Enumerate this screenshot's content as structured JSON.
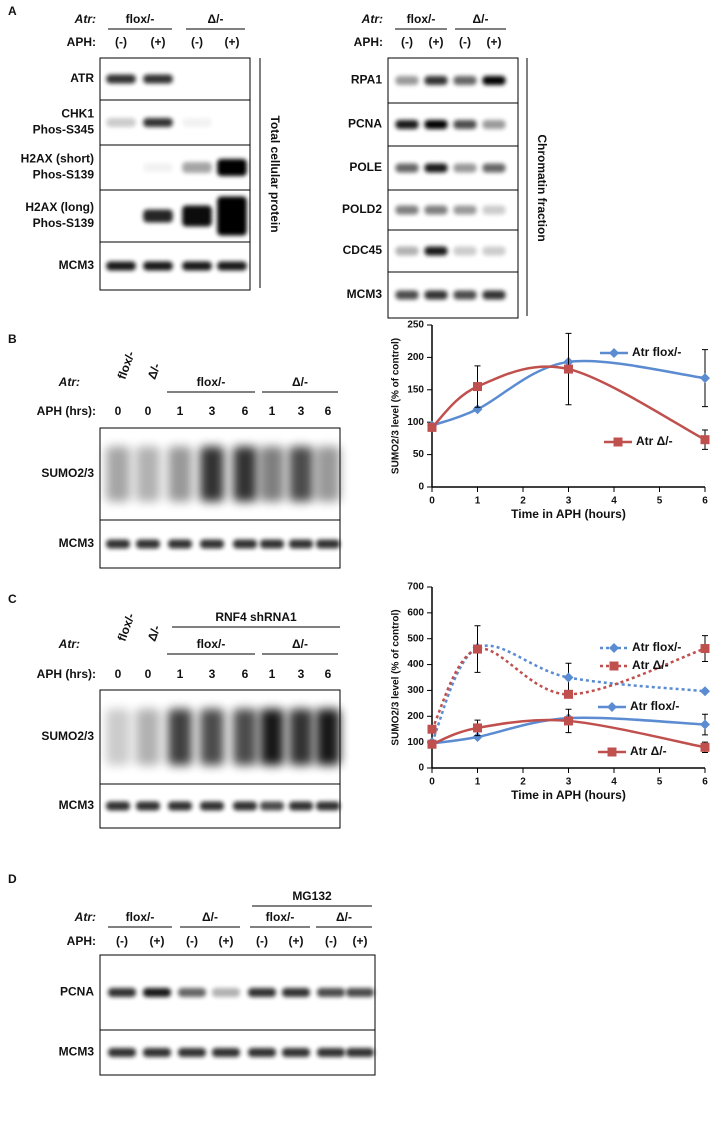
{
  "panel_A": {
    "label": "A",
    "left": {
      "gene_label": "Atr:",
      "groups": [
        "flox/-",
        "Δ/-"
      ],
      "treatment_label": "APH:",
      "lanes": [
        "(-)",
        "(+)",
        "(-)",
        "(+)"
      ],
      "rows": [
        [
          "ATR"
        ],
        [
          "CHK1",
          "Phos-S345"
        ],
        [
          "H2AX (short)",
          "Phos-S139"
        ],
        [
          "H2AX (long)",
          "Phos-S139"
        ],
        [
          "MCM3"
        ]
      ],
      "side_label": "Total cellular protein"
    },
    "right": {
      "gene_label": "Atr:",
      "groups": [
        "flox/-",
        "Δ/-"
      ],
      "treatment_label": "APH:",
      "lanes": [
        "(-)",
        "(+)",
        "(-)",
        "(+)"
      ],
      "rows": [
        [
          "RPA1"
        ],
        [
          "PCNA"
        ],
        [
          "POLE"
        ],
        [
          "POLD2"
        ],
        [
          "CDC45"
        ],
        [
          "MCM3"
        ]
      ],
      "side_label": "Chromatin fraction"
    }
  },
  "panel_B": {
    "label": "B",
    "single_lanes": [
      "flox/-",
      "Δ/-"
    ],
    "gene_label": "Atr:",
    "groups": [
      "flox/-",
      "Δ/-"
    ],
    "treatment_label": "APH (hrs):",
    "lanes": [
      "0",
      "0",
      "1",
      "3",
      "6",
      "1",
      "3",
      "6"
    ],
    "rows": [
      "SUMO2/3",
      "MCM3"
    ]
  },
  "panel_C": {
    "label": "C",
    "header": "RNF4 shRNA1",
    "single_lanes": [
      "flox/-",
      "Δ/-"
    ],
    "gene_label": "Atr:",
    "groups": [
      "flox/-",
      "Δ/-"
    ],
    "treatment_label": "APH (hrs):",
    "lanes": [
      "0",
      "0",
      "1",
      "3",
      "6",
      "1",
      "3",
      "6"
    ],
    "rows": [
      "SUMO2/3",
      "MCM3"
    ]
  },
  "panel_D": {
    "label": "D",
    "header": "MG132",
    "gene_label": "Atr:",
    "groups": [
      "flox/-",
      "Δ/-",
      "flox/-",
      "Δ/-"
    ],
    "treatment_label": "APH:",
    "lanes": [
      "(-)",
      "(+)",
      "(-)",
      "(+)",
      "(-)",
      "(+)",
      "(-)",
      "(+)"
    ],
    "rows": [
      "PCNA",
      "MCM3"
    ]
  },
  "chart_data": [
    {
      "type": "line",
      "y_label": "SUMO2/3 level (% of control)",
      "x_label": "Time in APH (hours)",
      "x": [
        0,
        1,
        3,
        6
      ],
      "xlim": [
        0,
        6
      ],
      "xticks": [
        0,
        1,
        2,
        3,
        4,
        5,
        6
      ],
      "ylim": [
        0,
        250
      ],
      "yticks": [
        0,
        50,
        100,
        150,
        200,
        250
      ],
      "series": [
        {
          "name": "Atr flox/-",
          "color": "#5b8bd0",
          "marker": "diamond",
          "dashed": false,
          "values": [
            95,
            120,
            193,
            168
          ],
          "errors": [
            null,
            null,
            null,
            44
          ]
        },
        {
          "name": "Atr Δ/-",
          "color": "#c0504d",
          "marker": "square",
          "dashed": false,
          "values": [
            92,
            155,
            182,
            73
          ],
          "errors": [
            null,
            32,
            55,
            15
          ]
        }
      ]
    },
    {
      "type": "line",
      "y_label": "SUMO2/3 level (% of control)",
      "x_label": "Time in APH (hours)",
      "x": [
        0,
        1,
        3,
        6
      ],
      "xlim": [
        0,
        6
      ],
      "xticks": [
        0,
        1,
        2,
        3,
        4,
        5,
        6
      ],
      "ylim": [
        0,
        700
      ],
      "yticks": [
        0,
        100,
        200,
        300,
        400,
        500,
        600,
        700
      ],
      "series": [
        {
          "name": "Atr flox/-",
          "color": "#5b8bd0",
          "marker": "diamond",
          "dashed": true,
          "values": [
            100,
            465,
            350,
            297
          ],
          "errors": [
            null,
            null,
            55,
            null
          ]
        },
        {
          "name": "Atr Δ/-",
          "color": "#c0504d",
          "marker": "square",
          "dashed": true,
          "values": [
            150,
            460,
            285,
            462
          ],
          "errors": [
            null,
            90,
            null,
            50
          ]
        },
        {
          "name": "Atr flox/-",
          "color": "#5b8bd0",
          "marker": "diamond",
          "dashed": false,
          "values": [
            95,
            120,
            193,
            168
          ],
          "errors": [
            null,
            null,
            null,
            40
          ]
        },
        {
          "name": "Atr Δ/-",
          "color": "#c0504d",
          "marker": "square",
          "dashed": false,
          "values": [
            92,
            155,
            182,
            80
          ],
          "errors": [
            null,
            30,
            45,
            20
          ]
        }
      ]
    }
  ]
}
